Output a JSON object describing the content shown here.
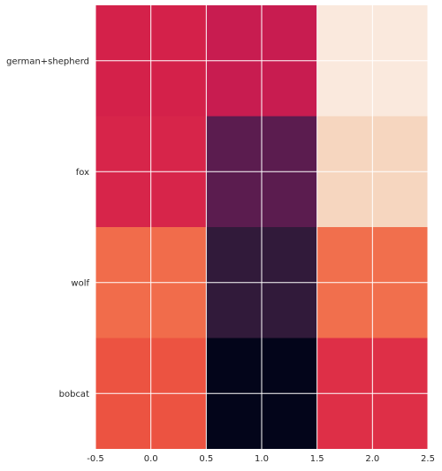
{
  "chart_data": {
    "type": "heatmap",
    "title": "",
    "xlabel": "",
    "ylabel": "",
    "rows": [
      "german+shepherd",
      "fox",
      "wolf",
      "bobcat"
    ],
    "x_ticks": [
      "-0.5",
      "0.0",
      "0.5",
      "1.0",
      "1.5",
      "2.0",
      "2.5"
    ],
    "xlim": [
      -0.5,
      2.5
    ],
    "columns": [
      0,
      1,
      2
    ],
    "cell_colors": [
      [
        "#d4214a",
        "#c81c50",
        "#fae9dd"
      ],
      [
        "#d7254a",
        "#5b1c4f",
        "#f6d6bf"
      ],
      [
        "#f16c4b",
        "#311a3a",
        "#f16f4d"
      ],
      [
        "#ec5341",
        "#03051a",
        "#de2f47"
      ]
    ],
    "grid": true,
    "grid_color": "#ffffff",
    "colorbar": false
  }
}
